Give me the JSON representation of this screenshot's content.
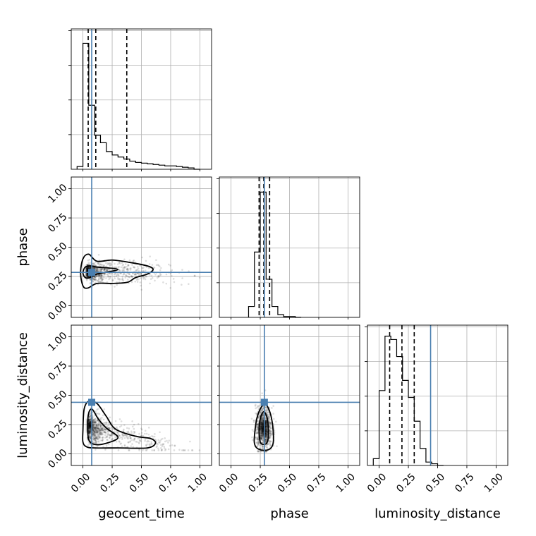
{
  "chart_data": {
    "type": "corner",
    "parameters": [
      "geocent_time",
      "phase",
      "luminosity_distance"
    ],
    "axis_range": [
      -0.1,
      1.1
    ],
    "ticks": [
      0.0,
      0.25,
      0.5,
      0.75,
      1.0
    ],
    "tick_labels": [
      "0.00",
      "0.25",
      "0.50",
      "0.75",
      "1.00"
    ],
    "grid": true,
    "truth_color": "#4a7fb0",
    "injection_values": {
      "geocent_time": 0.075,
      "phase": 0.285,
      "luminosity_distance": 0.44
    },
    "diagonal_histograms": [
      {
        "parameter": "geocent_time",
        "bins": [
          -0.05,
          0.0,
          0.05,
          0.1,
          0.15,
          0.2,
          0.25,
          0.3,
          0.35,
          0.4,
          0.45,
          0.5,
          0.55,
          0.6,
          0.65,
          0.7,
          0.75,
          0.8,
          0.85,
          0.9,
          0.95,
          1.0
        ],
        "counts": [
          4,
          185,
          94,
          50,
          39,
          26,
          21,
          18,
          15,
          12,
          10,
          9,
          8,
          7,
          6,
          5,
          5,
          4,
          3,
          2,
          0
        ],
        "ymax": 200,
        "quantiles": [
          0.045,
          0.11,
          0.375
        ]
      },
      {
        "parameter": "phase",
        "bins": [
          0.15,
          0.2,
          0.25,
          0.3,
          0.35,
          0.4,
          0.45,
          0.5,
          0.55,
          0.6
        ],
        "counts": [
          4,
          24,
          46,
          14,
          4,
          1,
          0.3,
          0.3,
          0
        ],
        "ymax": 50,
        "quantiles": [
          0.24,
          0.28,
          0.33
        ]
      },
      {
        "parameter": "luminosity_distance",
        "bins": [
          -0.05,
          0.0,
          0.05,
          0.1,
          0.15,
          0.2,
          0.25,
          0.3,
          0.35,
          0.4,
          0.45,
          0.5,
          0.55
        ],
        "counts": [
          2,
          22,
          38,
          37,
          32,
          25,
          20,
          13,
          5,
          1,
          0.5,
          0
        ],
        "ymax": 40,
        "quantiles": [
          0.09,
          0.195,
          0.3
        ]
      }
    ],
    "joint_panels": [
      {
        "x": "geocent_time",
        "y": "phase",
        "dense_center": [
          0.05,
          0.29
        ],
        "contour_levels": [
          {
            "points": [
              [
                0.0,
                0.28
              ],
              [
                0.02,
                0.33
              ],
              [
                0.07,
                0.34
              ],
              [
                0.12,
                0.33
              ],
              [
                0.3,
                0.31
              ],
              [
                0.12,
                0.27
              ],
              [
                0.06,
                0.24
              ],
              [
                0.02,
                0.24
              ]
            ]
          },
          {
            "points": [
              [
                -0.02,
                0.28
              ],
              [
                0.0,
                0.4
              ],
              [
                0.05,
                0.44
              ],
              [
                0.12,
                0.38
              ],
              [
                0.25,
                0.39
              ],
              [
                0.4,
                0.37
              ],
              [
                0.55,
                0.34
              ],
              [
                0.6,
                0.31
              ],
              [
                0.55,
                0.27
              ],
              [
                0.45,
                0.24
              ],
              [
                0.38,
                0.2
              ],
              [
                0.25,
                0.19
              ],
              [
                0.12,
                0.19
              ],
              [
                0.04,
                0.15
              ],
              [
                0.0,
                0.17
              ]
            ]
          }
        ]
      },
      {
        "x": "geocent_time",
        "y": "luminosity_distance",
        "dense_center": [
          0.06,
          0.24
        ],
        "contour_levels": [
          {
            "points": [
              [
                0.04,
                0.24
              ],
              [
                0.05,
                0.35
              ],
              [
                0.08,
                0.38
              ],
              [
                0.13,
                0.3
              ],
              [
                0.2,
                0.22
              ],
              [
                0.3,
                0.14
              ],
              [
                0.2,
                0.09
              ],
              [
                0.1,
                0.08
              ],
              [
                0.05,
                0.12
              ]
            ]
          },
          {
            "points": [
              [
                0.0,
                0.2
              ],
              [
                0.01,
                0.38
              ],
              [
                0.05,
                0.45
              ],
              [
                0.12,
                0.43
              ],
              [
                0.2,
                0.32
              ],
              [
                0.28,
                0.21
              ],
              [
                0.45,
                0.15
              ],
              [
                0.58,
                0.13
              ],
              [
                0.62,
                0.09
              ],
              [
                0.55,
                0.05
              ],
              [
                0.3,
                0.05
              ],
              [
                0.1,
                0.05
              ],
              [
                0.03,
                0.06
              ],
              [
                0.0,
                0.1
              ]
            ]
          }
        ]
      },
      {
        "x": "phase",
        "y": "luminosity_distance",
        "dense_center": [
          0.28,
          0.22
        ],
        "contour_levels": [
          {
            "points": [
              [
                0.24,
                0.2
              ],
              [
                0.25,
                0.3
              ],
              [
                0.28,
                0.36
              ],
              [
                0.31,
                0.3
              ],
              [
                0.32,
                0.18
              ],
              [
                0.31,
                0.1
              ],
              [
                0.28,
                0.08
              ],
              [
                0.25,
                0.1
              ]
            ]
          },
          {
            "points": [
              [
                0.2,
                0.15
              ],
              [
                0.22,
                0.3
              ],
              [
                0.26,
                0.4
              ],
              [
                0.3,
                0.42
              ],
              [
                0.34,
                0.33
              ],
              [
                0.36,
                0.2
              ],
              [
                0.36,
                0.09
              ],
              [
                0.33,
                0.04
              ],
              [
                0.27,
                0.03
              ],
              [
                0.22,
                0.05
              ],
              [
                0.2,
                0.09
              ]
            ]
          }
        ]
      }
    ]
  }
}
